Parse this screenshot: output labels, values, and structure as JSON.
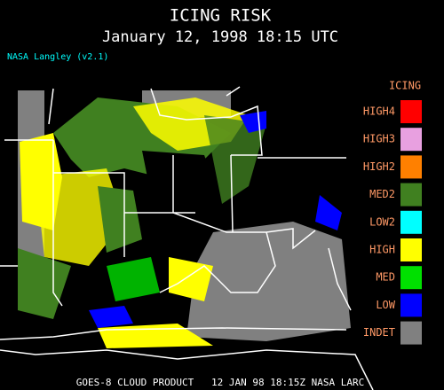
{
  "header": {
    "title": "ICING RISK",
    "subtitle": "January 12, 1998 18:15 UTC",
    "credit": "NASA Langley (v2.1)"
  },
  "legend": {
    "title": "ICING",
    "items": [
      {
        "label": "HIGH4",
        "color": "#ff0000"
      },
      {
        "label": "HIGH3",
        "color": "#e8a0e0"
      },
      {
        "label": "HIGH2",
        "color": "#ff8000"
      },
      {
        "label": "MED2",
        "color": "#408020"
      },
      {
        "label": "LOW2",
        "color": "#00ffff"
      },
      {
        "label": "HIGH",
        "color": "#ffff00"
      },
      {
        "label": "MED",
        "color": "#00e000"
      },
      {
        "label": "LOW",
        "color": "#0000ff"
      },
      {
        "label": "INDET",
        "color": "#808080"
      }
    ]
  },
  "footer": {
    "text": "GOES-8 CLOUD PRODUCT   12 JAN 98 18:15Z NASA LARC"
  }
}
